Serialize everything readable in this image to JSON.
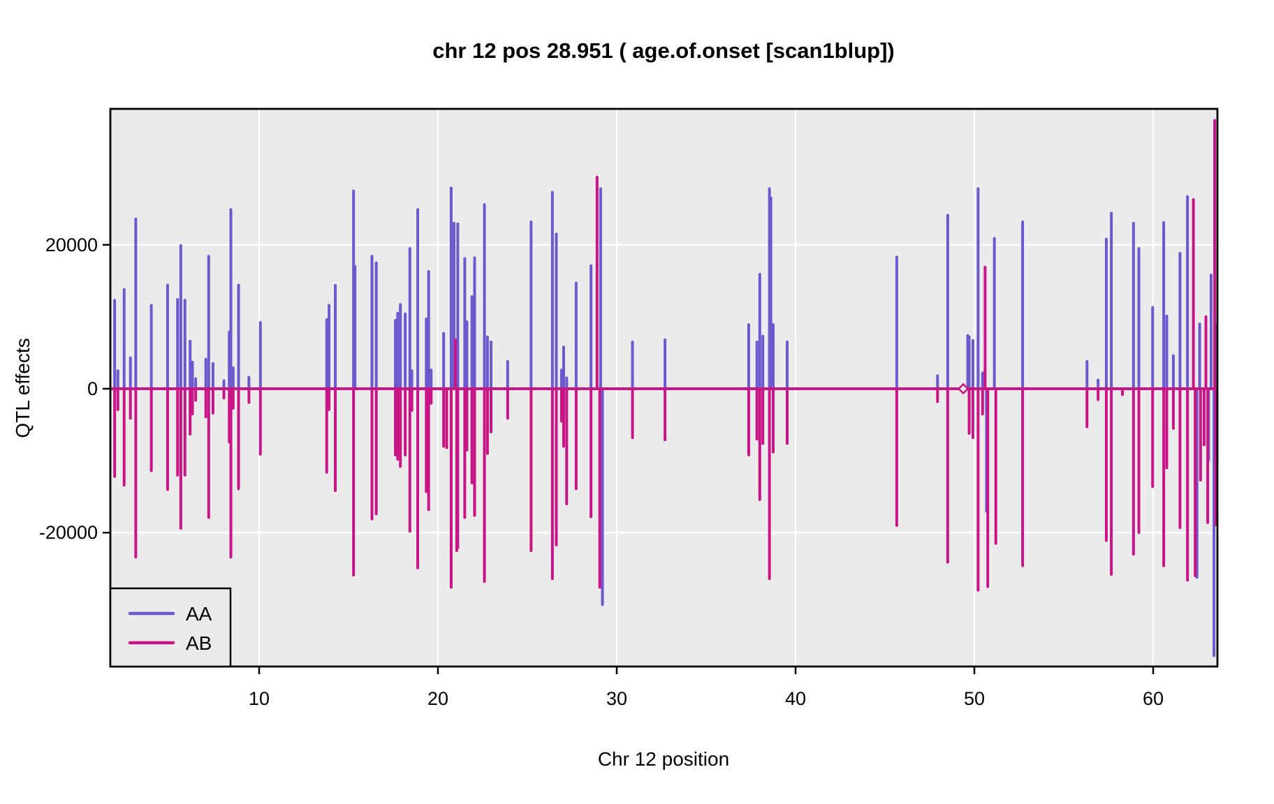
{
  "chart_data": {
    "type": "line",
    "title": "chr 12 pos 28.951 ( age.of.onset  [scan1blup])",
    "xlabel": "Chr 12 position",
    "ylabel": "QTL effects",
    "x_ticks": [
      10,
      20,
      30,
      40,
      50,
      60
    ],
    "y_ticks": [
      -20000,
      0,
      20000
    ],
    "xlim": [
      1.68,
      63.59
    ],
    "ylim": [
      -38600,
      38900
    ],
    "grid": true,
    "legend_position": "bottom-left",
    "panel_bg": "#EBEBEB",
    "grid_color": "#FFFFFF",
    "border_color": "#000000",
    "baseline": 0,
    "series": [
      {
        "name": "AA",
        "color": "#6A5ACD",
        "spikes": [
          [
            1.92,
            12300
          ],
          [
            2.1,
            2500
          ],
          [
            2.45,
            13800
          ],
          [
            2.8,
            4300
          ],
          [
            3.1,
            23600
          ],
          [
            3.97,
            11600
          ],
          [
            4.88,
            14400
          ],
          [
            5.44,
            12400
          ],
          [
            5.62,
            19900
          ],
          [
            5.85,
            12300
          ],
          [
            6.14,
            6600
          ],
          [
            6.27,
            3700
          ],
          [
            6.45,
            1400
          ],
          [
            7.02,
            4100
          ],
          [
            7.18,
            18400
          ],
          [
            7.42,
            3500
          ],
          [
            8.03,
            1100
          ],
          [
            8.33,
            7900
          ],
          [
            8.42,
            24900
          ],
          [
            8.55,
            2900
          ],
          [
            8.85,
            14400
          ],
          [
            9.43,
            1600
          ],
          [
            10.07,
            9200
          ],
          [
            13.78,
            9600
          ],
          [
            13.91,
            11600
          ],
          [
            14.26,
            14350
          ],
          [
            15.28,
            27500
          ],
          [
            15.36,
            17000
          ],
          [
            16.31,
            18400
          ],
          [
            16.55,
            17500
          ],
          [
            17.62,
            9500
          ],
          [
            17.75,
            10500
          ],
          [
            17.9,
            11700
          ],
          [
            18.17,
            10400
          ],
          [
            18.43,
            19500
          ],
          [
            18.54,
            2500
          ],
          [
            18.87,
            24900
          ],
          [
            19.35,
            9700
          ],
          [
            19.48,
            16300
          ],
          [
            19.62,
            2600
          ],
          [
            20.32,
            7700
          ],
          [
            20.74,
            27900
          ],
          [
            20.9,
            23000
          ],
          [
            21.11,
            22900
          ],
          [
            21.5,
            18100
          ],
          [
            21.62,
            9300
          ],
          [
            21.9,
            12800
          ],
          [
            22.05,
            18200
          ],
          [
            22.6,
            25600
          ],
          [
            22.77,
            7200
          ],
          [
            22.97,
            6500
          ],
          [
            23.9,
            3800
          ],
          [
            25.21,
            23200
          ],
          [
            26.4,
            27300
          ],
          [
            26.62,
            21500
          ],
          [
            26.91,
            2600
          ],
          [
            27.03,
            5800
          ],
          [
            27.2,
            1500
          ],
          [
            27.73,
            14700
          ],
          [
            28.56,
            17100
          ],
          [
            29.1,
            27800
          ],
          [
            29.2,
            -30000
          ],
          [
            30.88,
            6500
          ],
          [
            32.7,
            6800
          ],
          [
            37.38,
            8900
          ],
          [
            37.84,
            6500
          ],
          [
            38.0,
            15900
          ],
          [
            38.17,
            7300
          ],
          [
            38.54,
            27800
          ],
          [
            38.62,
            26500
          ],
          [
            38.75,
            8900
          ],
          [
            39.53,
            6500
          ],
          [
            45.66,
            18300
          ],
          [
            47.94,
            1800
          ],
          [
            48.51,
            24100
          ],
          [
            49.63,
            7400
          ],
          [
            49.71,
            7200
          ],
          [
            49.92,
            6700
          ],
          [
            50.21,
            27800
          ],
          [
            50.46,
            2200
          ],
          [
            50.68,
            -17000
          ],
          [
            51.12,
            20900
          ],
          [
            52.7,
            23200
          ],
          [
            56.3,
            3800
          ],
          [
            56.92,
            1200
          ],
          [
            57.38,
            20800
          ],
          [
            57.66,
            24400
          ],
          [
            58.9,
            23000
          ],
          [
            59.2,
            19500
          ],
          [
            59.97,
            11300
          ],
          [
            60.59,
            23100
          ],
          [
            60.76,
            10100
          ],
          [
            61.13,
            4600
          ],
          [
            61.5,
            18800
          ],
          [
            61.92,
            26700
          ],
          [
            62.45,
            -26200
          ],
          [
            62.6,
            9000
          ],
          [
            63.1,
            -9900
          ],
          [
            63.24,
            15800
          ],
          [
            63.4,
            -37100
          ],
          [
            63.55,
            8900
          ]
        ],
        "markers": []
      },
      {
        "name": "AB",
        "color": "#C71585",
        "spikes": [
          [
            1.92,
            -12200
          ],
          [
            2.1,
            -2900
          ],
          [
            2.45,
            -13400
          ],
          [
            2.8,
            -4100
          ],
          [
            3.1,
            -23400
          ],
          [
            3.97,
            -11400
          ],
          [
            4.88,
            -14000
          ],
          [
            5.44,
            -12000
          ],
          [
            5.62,
            -19400
          ],
          [
            5.85,
            -12000
          ],
          [
            6.14,
            -6300
          ],
          [
            6.27,
            -3500
          ],
          [
            6.45,
            -1600
          ],
          [
            7.02,
            -3900
          ],
          [
            7.18,
            -17900
          ],
          [
            7.42,
            -3400
          ],
          [
            8.03,
            -1300
          ],
          [
            8.33,
            -7400
          ],
          [
            8.42,
            -23400
          ],
          [
            8.55,
            -2700
          ],
          [
            8.85,
            -13900
          ],
          [
            9.43,
            -1900
          ],
          [
            10.07,
            -9100
          ],
          [
            13.78,
            -11600
          ],
          [
            13.91,
            -2900
          ],
          [
            14.26,
            -14150
          ],
          [
            15.28,
            -25900
          ],
          [
            16.31,
            -18100
          ],
          [
            16.55,
            -17400
          ],
          [
            17.62,
            -9200
          ],
          [
            17.75,
            -9800
          ],
          [
            17.9,
            -10800
          ],
          [
            18.17,
            -9200
          ],
          [
            18.43,
            -19800
          ],
          [
            18.54,
            -3000
          ],
          [
            18.87,
            -24900
          ],
          [
            19.35,
            -14300
          ],
          [
            19.48,
            -16800
          ],
          [
            19.62,
            -2000
          ],
          [
            20.32,
            -8000
          ],
          [
            20.49,
            -8200
          ],
          [
            20.74,
            -27600
          ],
          [
            20.98,
            6800
          ],
          [
            21.05,
            -22500
          ],
          [
            21.11,
            -22100
          ],
          [
            21.5,
            -17900
          ],
          [
            21.62,
            -8500
          ],
          [
            21.9,
            -13100
          ],
          [
            22.05,
            -17600
          ],
          [
            22.6,
            -26800
          ],
          [
            22.77,
            -9000
          ],
          [
            22.97,
            -6000
          ],
          [
            23.9,
            -4100
          ],
          [
            25.21,
            -22500
          ],
          [
            26.4,
            -26400
          ],
          [
            26.62,
            -21700
          ],
          [
            26.91,
            -4500
          ],
          [
            27.03,
            -8000
          ],
          [
            27.2,
            -16000
          ],
          [
            27.73,
            -13900
          ],
          [
            28.56,
            -17800
          ],
          [
            28.9,
            29400
          ],
          [
            29.05,
            -27600
          ],
          [
            30.88,
            -6800
          ],
          [
            32.7,
            -7100
          ],
          [
            37.38,
            -9200
          ],
          [
            37.84,
            -7000
          ],
          [
            38.0,
            -15400
          ],
          [
            38.17,
            -7600
          ],
          [
            38.54,
            -26400
          ],
          [
            38.75,
            -8800
          ],
          [
            39.53,
            -7600
          ],
          [
            45.66,
            -19000
          ],
          [
            47.94,
            -1800
          ],
          [
            48.51,
            -24100
          ],
          [
            49.71,
            -6200
          ],
          [
            49.92,
            -6800
          ],
          [
            50.21,
            -28000
          ],
          [
            50.46,
            -3500
          ],
          [
            50.6,
            16900
          ],
          [
            50.75,
            -27500
          ],
          [
            51.2,
            -21500
          ],
          [
            52.7,
            -24600
          ],
          [
            56.3,
            -5300
          ],
          [
            56.92,
            -1500
          ],
          [
            57.38,
            -21100
          ],
          [
            57.66,
            -25800
          ],
          [
            58.28,
            -800
          ],
          [
            58.9,
            -23000
          ],
          [
            59.2,
            -20000
          ],
          [
            59.97,
            -13600
          ],
          [
            60.59,
            -24600
          ],
          [
            60.76,
            -11000
          ],
          [
            61.13,
            -5500
          ],
          [
            61.5,
            -19300
          ],
          [
            61.92,
            -26600
          ],
          [
            62.25,
            26300
          ],
          [
            62.35,
            -26000
          ],
          [
            62.65,
            -12700
          ],
          [
            62.85,
            -7800
          ],
          [
            62.95,
            10000
          ],
          [
            63.05,
            -18600
          ],
          [
            63.44,
            37300
          ],
          [
            63.5,
            -18900
          ]
        ],
        "markers": [
          [
            49.38,
            0
          ]
        ]
      }
    ],
    "legend": {
      "entries": [
        "AA",
        "AB"
      ]
    }
  }
}
